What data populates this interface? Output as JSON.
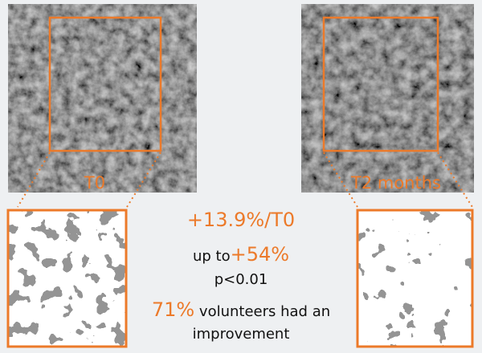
{
  "images": [
    {
      "label": "T0"
    },
    {
      "label": "T2 months"
    }
  ],
  "stats": {
    "increase": "+13.9%/T0",
    "up_to_prefix": "up to",
    "up_to_value": "+54%",
    "p_value": "p<0.01",
    "volunteers_value": "71%",
    "volunteers_text": "volunteers had an improvement"
  }
}
